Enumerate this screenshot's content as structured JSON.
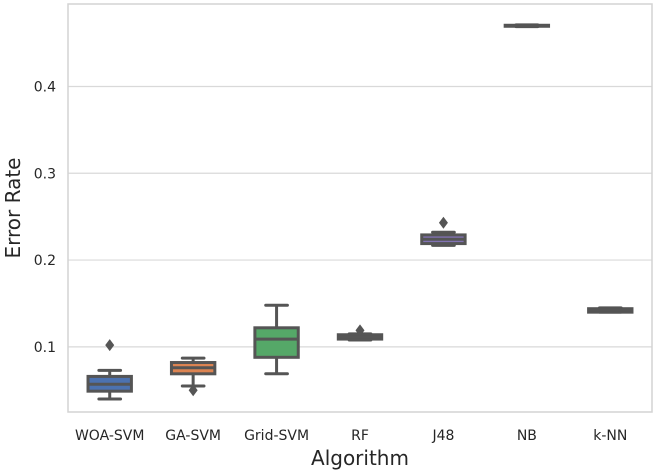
{
  "chart_data": {
    "type": "box",
    "xlabel": "Algorithm",
    "ylabel": "Error Rate",
    "y_ticks": [
      "0.1",
      "0.2",
      "0.3",
      "0.4"
    ],
    "y_tick_values": [
      0.1,
      0.2,
      0.3,
      0.4
    ],
    "ylim": [
      0.025,
      0.495
    ],
    "grid": "horizontal",
    "categories": [
      "WOA-SVM",
      "GA-SVM",
      "Grid-SVM",
      "RF",
      "J48",
      "NB",
      "k-NN"
    ],
    "boxes": [
      {
        "category": "WOA-SVM",
        "color": "#4c72b0",
        "whisker_low": 0.04,
        "q1": 0.049,
        "median": 0.057,
        "q3": 0.066,
        "whisker_high": 0.073,
        "outliers": [
          0.102
        ]
      },
      {
        "category": "GA-SVM",
        "color": "#dd8452",
        "whisker_low": 0.055,
        "q1": 0.069,
        "median": 0.076,
        "q3": 0.082,
        "whisker_high": 0.087,
        "outliers": [
          0.05
        ]
      },
      {
        "category": "Grid-SVM",
        "color": "#55a868",
        "whisker_low": 0.069,
        "q1": 0.088,
        "median": 0.109,
        "q3": 0.122,
        "whisker_high": 0.148,
        "outliers": []
      },
      {
        "category": "RF",
        "color": "#c44e52",
        "whisker_low": 0.108,
        "q1": 0.109,
        "median": 0.111,
        "q3": 0.114,
        "whisker_high": 0.115,
        "outliers": [
          0.119
        ]
      },
      {
        "category": "J48",
        "color": "#8172b3",
        "whisker_low": 0.217,
        "q1": 0.219,
        "median": 0.224,
        "q3": 0.229,
        "whisker_high": 0.232,
        "outliers": [
          0.243
        ]
      },
      {
        "category": "NB",
        "color": "#937860",
        "whisker_low": 0.469,
        "q1": 0.4695,
        "median": 0.47,
        "q3": 0.4705,
        "whisker_high": 0.471,
        "outliers": []
      },
      {
        "category": "k-NN",
        "color": "#da8bc3",
        "whisker_low": 0.14,
        "q1": 0.14,
        "median": 0.142,
        "q3": 0.144,
        "whisker_high": 0.145,
        "outliers": []
      }
    ]
  }
}
